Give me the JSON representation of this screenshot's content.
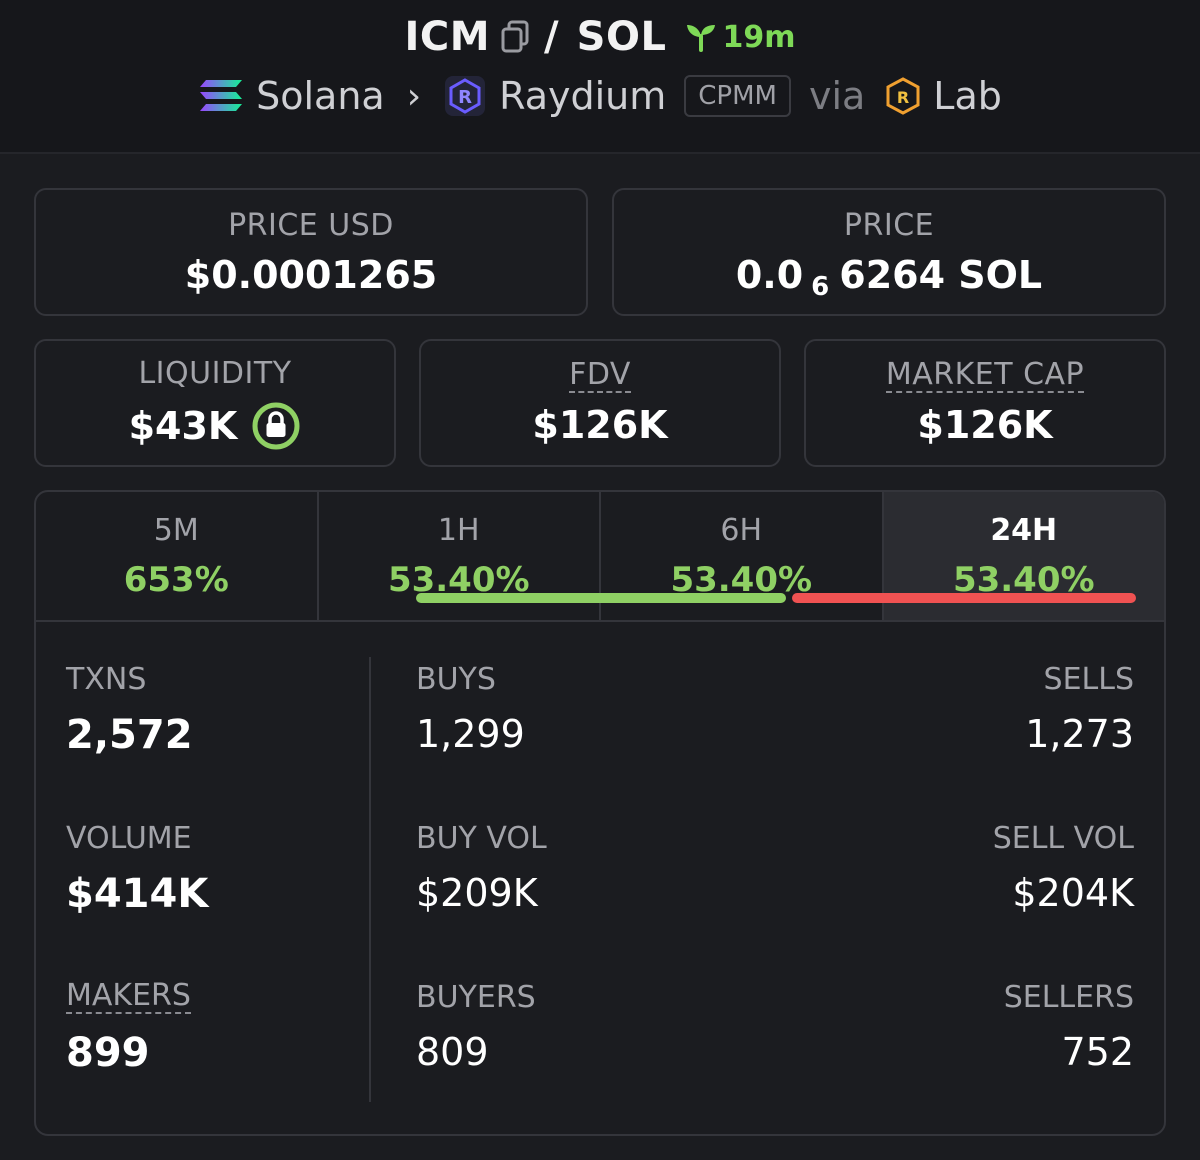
{
  "header": {
    "base_symbol": "ICM",
    "slash": "/",
    "quote_symbol": "SOL",
    "age": "19m",
    "chain": "Solana",
    "dex": "Raydium",
    "pool_type": "CPMM",
    "via": "via",
    "launchpad": "Lab"
  },
  "prices": {
    "usd_label": "PRICE USD",
    "usd_value": "$0.0001265",
    "native_label": "PRICE",
    "native_prefix": "0.0",
    "native_zeros": "6",
    "native_suffix": "6264 SOL"
  },
  "metrics": {
    "liquidity_label": "LIQUIDITY",
    "liquidity_value": "$43K",
    "fdv_label": "FDV",
    "fdv_value": "$126K",
    "mcap_label": "MARKET CAP",
    "mcap_value": "$126K"
  },
  "tabs": [
    {
      "label": "5M",
      "value": "653%"
    },
    {
      "label": "1H",
      "value": "53.40%"
    },
    {
      "label": "6H",
      "value": "53.40%"
    },
    {
      "label": "24H",
      "value": "53.40%"
    }
  ],
  "stats": {
    "txns_label": "TXNS",
    "txns_value": "2,572",
    "volume_label": "VOLUME",
    "volume_value": "$414K",
    "makers_label": "MAKERS",
    "makers_value": "899",
    "buys_label": "BUYS",
    "buys_value": "1,299",
    "sells_label": "SELLS",
    "sells_value": "1,273",
    "buy_vol_label": "BUY VOL",
    "buy_vol_value": "$209K",
    "sell_vol_label": "SELL VOL",
    "sell_vol_value": "$204K",
    "buyers_label": "BUYERS",
    "buyers_value": "809",
    "sellers_label": "SELLERS",
    "sellers_value": "752"
  },
  "ratios": {
    "buys_fraction": 0.505,
    "buy_vol_fraction": 0.506,
    "buyers_fraction": 0.518
  },
  "colors": {
    "green": "#8fd064",
    "red": "#f05252",
    "accent_green": "#7ed957"
  },
  "icons": {
    "copy": "copy-icon",
    "age": "seedling-icon",
    "chain": "solana-icon",
    "dex": "raydium-icon",
    "launchpad": "raydium-lab-icon",
    "liquidity": "lock-icon"
  }
}
